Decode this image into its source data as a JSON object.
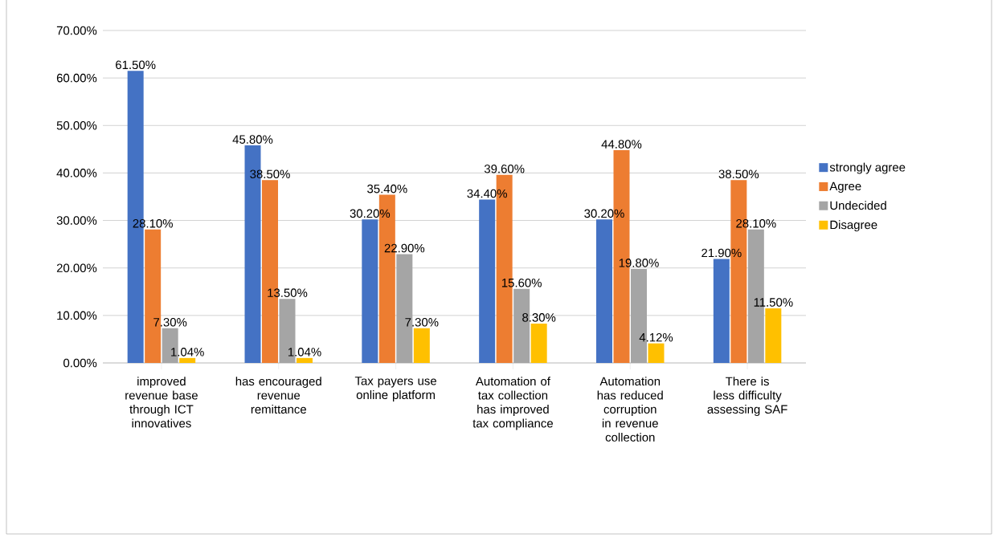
{
  "chart_data": {
    "type": "bar",
    "categories": [
      "improved revenue base through ICT innovatives",
      "has encouraged revenue remittance",
      "Tax payers use online platform",
      "Automation of tax collection has improved tax compliance",
      "Automation has reduced corruption in revenue collection",
      "There is less difficulty assessing SAF"
    ],
    "series": [
      {
        "name": "strongly agree",
        "color": "#4472c4",
        "values": [
          61.5,
          45.8,
          30.2,
          34.4,
          30.2,
          21.9
        ],
        "value_labels": [
          "61.50%",
          "45.80%",
          "30.20%",
          "34.40%",
          "30.20%",
          "21.90%"
        ]
      },
      {
        "name": "Agree",
        "color": "#ed7d31",
        "values": [
          28.1,
          38.5,
          35.4,
          39.6,
          44.8,
          38.5
        ],
        "value_labels": [
          "28.10%",
          "38.50%",
          "35.40%",
          "39.60%",
          "44.80%",
          "38.50%"
        ]
      },
      {
        "name": "Undecided",
        "color": "#a5a5a5",
        "values": [
          7.3,
          13.5,
          22.9,
          15.6,
          19.8,
          28.1
        ],
        "value_labels": [
          "7.30%",
          "13.50%",
          "22.90%",
          "15.60%",
          "19.80%",
          "28.10%"
        ]
      },
      {
        "name": "Disagree",
        "color": "#ffc000",
        "values": [
          1.04,
          1.04,
          7.3,
          8.3,
          4.12,
          11.5
        ],
        "value_labels": [
          "1.04%",
          "1.04%",
          "7.30%",
          "8.30%",
          "4.12%",
          "11.50%"
        ]
      }
    ],
    "ylim": [
      0,
      70
    ],
    "yticks": [
      {
        "value": 0,
        "label": "0.00%"
      },
      {
        "value": 10,
        "label": "10.00%"
      },
      {
        "value": 20,
        "label": "20.00%"
      },
      {
        "value": 30,
        "label": "30.00%"
      },
      {
        "value": 40,
        "label": "40.00%"
      },
      {
        "value": 50,
        "label": "50.00%"
      },
      {
        "value": 60,
        "label": "60.00%"
      },
      {
        "value": 70,
        "label": "70.00%"
      }
    ],
    "grid": "y",
    "legend": "right"
  }
}
